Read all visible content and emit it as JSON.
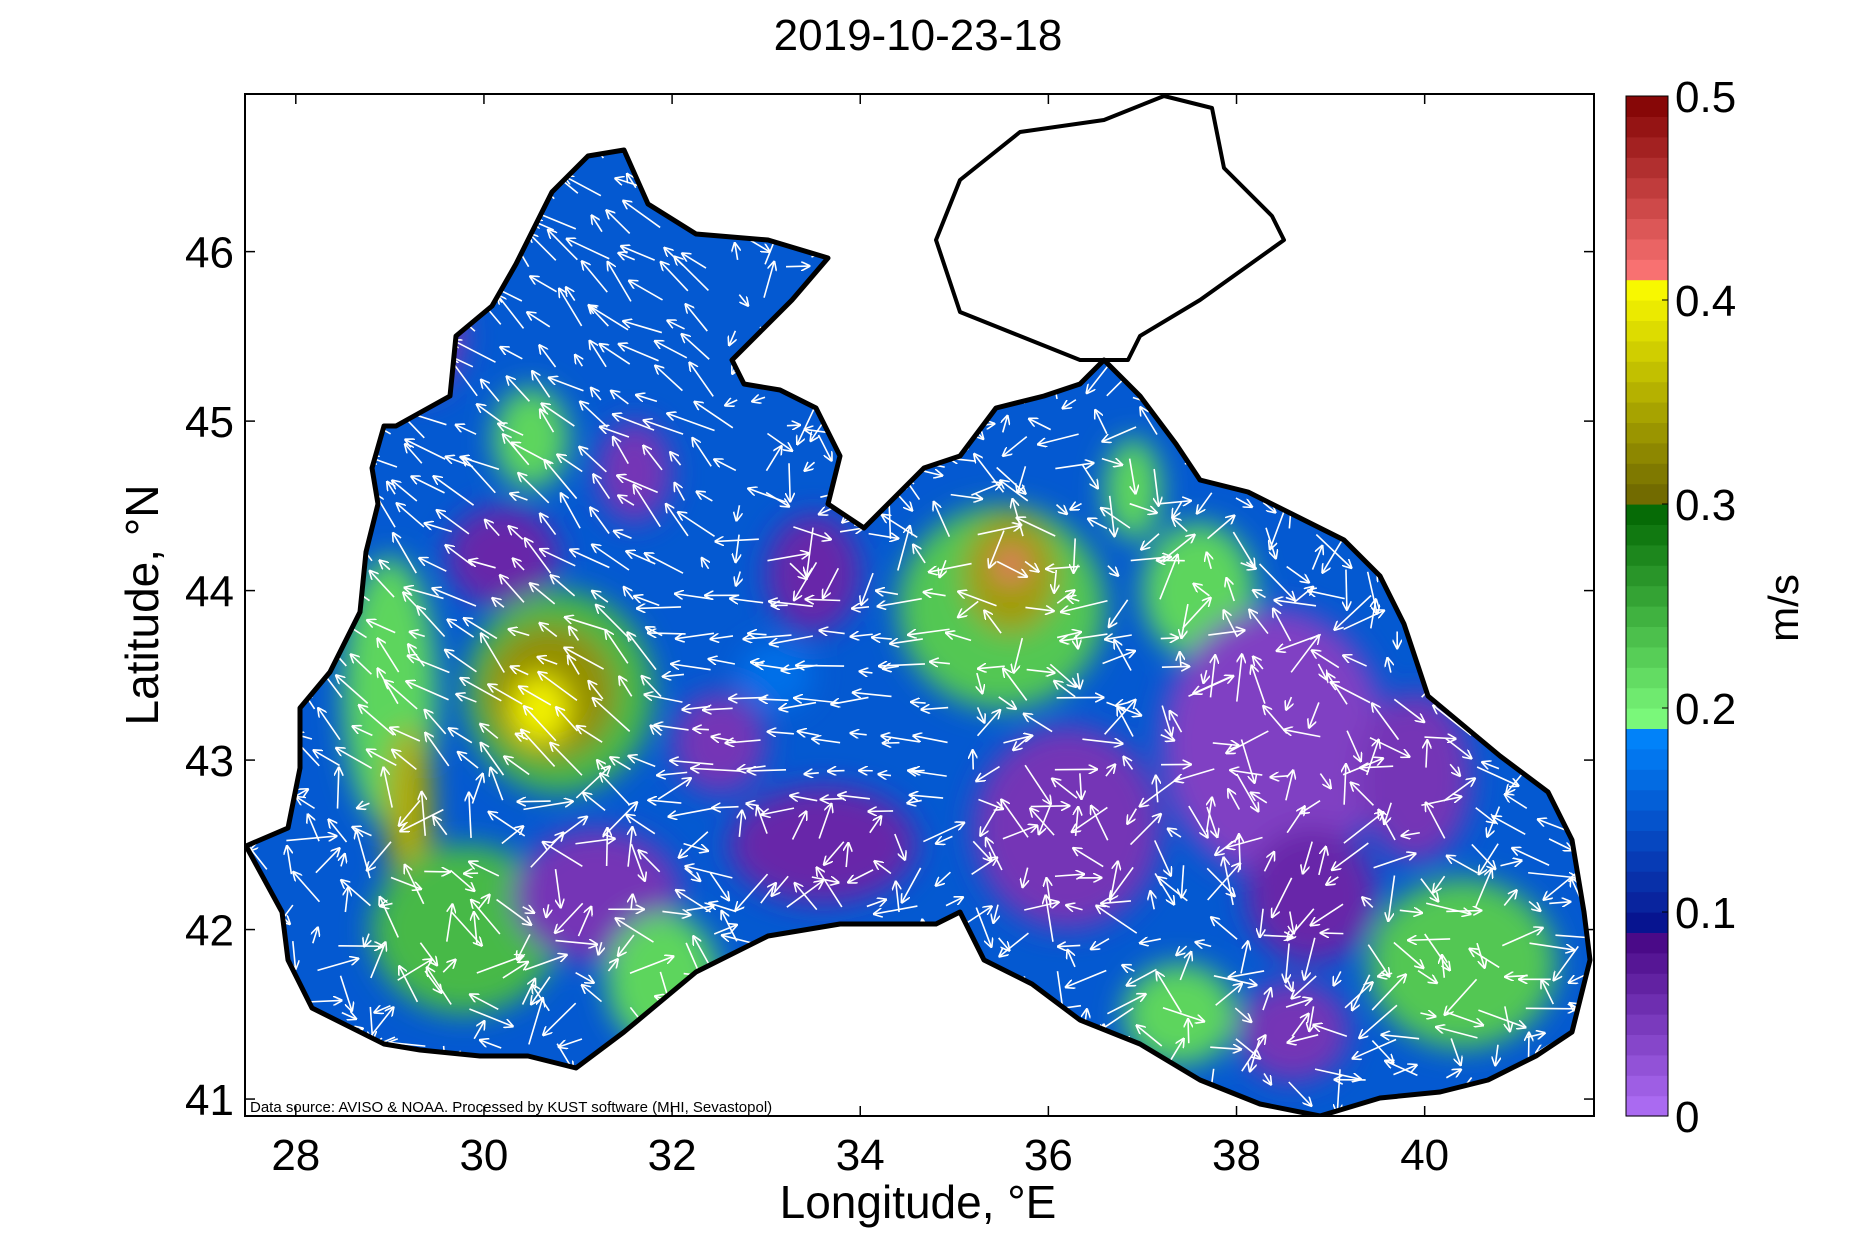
{
  "chart_data": {
    "type": "heatmap",
    "subtype": "current speed map with velocity vectors",
    "title": "2019-10-23-18",
    "xlabel": "Longitude, °E",
    "ylabel": "Latitude, °N",
    "xlim": [
      27.46,
      41.8
    ],
    "ylim": [
      40.9,
      46.93
    ],
    "xticks": [
      28,
      30,
      32,
      34,
      36,
      38,
      40
    ],
    "xtick_labels": [
      "28",
      "30",
      "32",
      "34",
      "36",
      "38",
      "40"
    ],
    "yticks": [
      41,
      42,
      43,
      44,
      45,
      46
    ],
    "ytick_labels": [
      "41",
      "42",
      "43",
      "44",
      "45",
      "46"
    ],
    "colorbar": {
      "label": "m/s",
      "range": [
        0,
        0.5
      ],
      "ticks": [
        0,
        0.1,
        0.2,
        0.3,
        0.4,
        0.5
      ],
      "tick_labels": [
        "0",
        "0.1",
        "0.2",
        "0.3",
        "0.4",
        "0.5"
      ],
      "stops": [
        {
          "v": 0.0,
          "color": "#b070f8"
        },
        {
          "v": 0.085,
          "color": "#4a0a88"
        },
        {
          "v": 0.0851,
          "color": "#000080"
        },
        {
          "v": 0.1,
          "color": "#0a1e98"
        },
        {
          "v": 0.19,
          "color": "#0088ff"
        },
        {
          "v": 0.1901,
          "color": "#80ff80"
        },
        {
          "v": 0.3,
          "color": "#006400"
        },
        {
          "v": 0.3001,
          "color": "#6b6400"
        },
        {
          "v": 0.41,
          "color": "#ffff00"
        },
        {
          "v": 0.4101,
          "color": "#ff7878"
        },
        {
          "v": 0.5,
          "color": "#800000"
        }
      ]
    },
    "annotation": "Data source: AVISO & NOAA. Processed by KUST software (MHI, Sevastopol)",
    "features": [
      {
        "name": "max speed core",
        "lon": 30.6,
        "lat": 43.3,
        "speed": 0.42
      },
      {
        "name": "secondary jet core",
        "lon": 35.6,
        "lat": 44.15,
        "speed": 0.41
      },
      {
        "name": "western coastal jet",
        "lon": 29.2,
        "lat": 42.7,
        "speed": 0.36
      }
    ]
  }
}
